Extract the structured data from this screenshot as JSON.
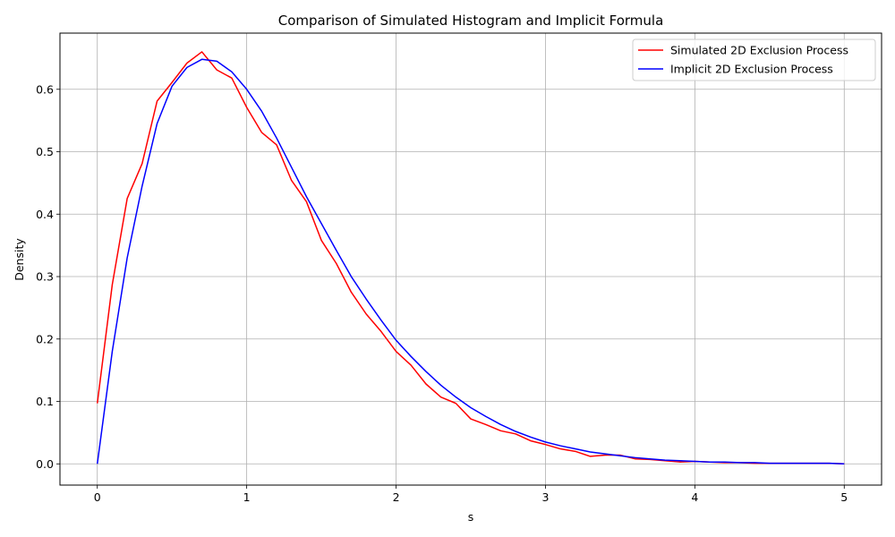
{
  "chart_data": {
    "type": "line",
    "title": "Comparison of Simulated Histogram and Implicit Formula",
    "xlabel": "s",
    "ylabel": "Density",
    "xlim": [
      -0.25,
      5.25
    ],
    "ylim": [
      -0.034,
      0.69
    ],
    "xticks": [
      0,
      1,
      2,
      3,
      4,
      5
    ],
    "yticks": [
      0.0,
      0.1,
      0.2,
      0.3,
      0.4,
      0.5,
      0.6
    ],
    "grid": true,
    "legend_position": "top-right",
    "series": [
      {
        "name": "Simulated 2D Exclusion Process",
        "color": "#ff0000",
        "x": [
          0.0,
          0.1,
          0.2,
          0.3,
          0.4,
          0.5,
          0.6,
          0.7,
          0.8,
          0.9,
          1.0,
          1.1,
          1.2,
          1.3,
          1.4,
          1.5,
          1.6,
          1.7,
          1.8,
          1.9,
          2.0,
          2.1,
          2.2,
          2.3,
          2.4,
          2.5,
          2.6,
          2.7,
          2.8,
          2.9,
          3.0,
          3.1,
          3.2,
          3.3,
          3.4,
          3.5,
          3.6,
          3.7,
          3.8,
          3.9,
          4.0,
          4.1,
          4.2,
          4.3,
          4.4,
          4.5,
          4.6,
          4.7,
          4.8,
          4.9,
          5.0
        ],
        "y": [
          0.097,
          0.287,
          0.425,
          0.481,
          0.581,
          0.611,
          0.642,
          0.66,
          0.631,
          0.618,
          0.571,
          0.531,
          0.511,
          0.454,
          0.42,
          0.358,
          0.321,
          0.275,
          0.24,
          0.212,
          0.18,
          0.158,
          0.128,
          0.107,
          0.097,
          0.072,
          0.063,
          0.053,
          0.048,
          0.037,
          0.031,
          0.024,
          0.02,
          0.012,
          0.014,
          0.014,
          0.008,
          0.007,
          0.005,
          0.003,
          0.004,
          0.003,
          0.002,
          0.002,
          0.001,
          0.001,
          0.001,
          0.001,
          0.001,
          0.001,
          0.0
        ]
      },
      {
        "name": "Implicit 2D Exclusion Process",
        "color": "#0000ff",
        "x": [
          0.0,
          0.1,
          0.2,
          0.3,
          0.4,
          0.5,
          0.6,
          0.7,
          0.8,
          0.9,
          1.0,
          1.1,
          1.2,
          1.3,
          1.4,
          1.5,
          1.6,
          1.7,
          1.8,
          1.9,
          2.0,
          2.1,
          2.2,
          2.3,
          2.4,
          2.5,
          2.6,
          2.7,
          2.8,
          2.9,
          3.0,
          3.1,
          3.2,
          3.3,
          3.4,
          3.5,
          3.6,
          3.7,
          3.8,
          3.9,
          4.0,
          4.1,
          4.2,
          4.3,
          4.4,
          4.5,
          4.6,
          4.7,
          4.8,
          4.9,
          5.0
        ],
        "y": [
          0.0,
          0.18,
          0.33,
          0.445,
          0.545,
          0.605,
          0.635,
          0.648,
          0.645,
          0.628,
          0.6,
          0.565,
          0.522,
          0.475,
          0.428,
          0.385,
          0.342,
          0.3,
          0.264,
          0.23,
          0.198,
          0.172,
          0.148,
          0.126,
          0.107,
          0.09,
          0.076,
          0.063,
          0.052,
          0.043,
          0.035,
          0.029,
          0.024,
          0.019,
          0.016,
          0.013,
          0.01,
          0.008,
          0.006,
          0.005,
          0.004,
          0.003,
          0.003,
          0.002,
          0.002,
          0.001,
          0.001,
          0.001,
          0.001,
          0.001,
          0.0
        ]
      }
    ]
  }
}
